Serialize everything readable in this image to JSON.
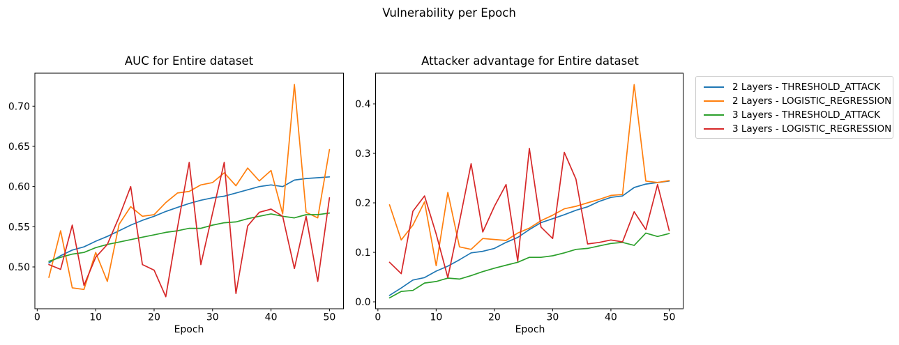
{
  "suptitle": "Vulnerability per Epoch",
  "colors": {
    "blue": "#1f77b4",
    "orange": "#ff7f0e",
    "green": "#2ca02c",
    "red": "#d62728",
    "spine": "#000000",
    "text": "#000000",
    "legend_border": "#cccccc"
  },
  "legend": {
    "position": "outside-right",
    "items": [
      {
        "label": "2 Layers - THRESHOLD_ATTACK",
        "color": "#1f77b4"
      },
      {
        "label": "2 Layers - LOGISTIC_REGRESSION",
        "color": "#ff7f0e"
      },
      {
        "label": "3 Layers - THRESHOLD_ATTACK",
        "color": "#2ca02c"
      },
      {
        "label": "3 Layers - LOGISTIC_REGRESSION",
        "color": "#d62728"
      }
    ]
  },
  "chart_data": [
    {
      "type": "line",
      "title": "AUC for Entire dataset",
      "xlabel": "Epoch",
      "ylabel": "",
      "grid": false,
      "xlim": [
        -0.4,
        52.4
      ],
      "ylim": [
        0.448,
        0.741
      ],
      "xticks": [
        0,
        10,
        20,
        30,
        40,
        50
      ],
      "xtick_labels": [
        "0",
        "10",
        "20",
        "30",
        "40",
        "50"
      ],
      "yticks": [
        0.5,
        0.55,
        0.6,
        0.65,
        0.7
      ],
      "ytick_labels": [
        "0.50",
        "0.55",
        "0.60",
        "0.65",
        "0.70"
      ],
      "x": [
        2,
        4,
        6,
        8,
        10,
        12,
        14,
        16,
        18,
        20,
        22,
        24,
        26,
        28,
        30,
        32,
        34,
        36,
        38,
        40,
        42,
        44,
        46,
        48,
        50
      ],
      "series": [
        {
          "name": "2 Layers - THRESHOLD_ATTACK",
          "color": "#1f77b4",
          "values": [
            0.505,
            0.514,
            0.521,
            0.525,
            0.532,
            0.538,
            0.545,
            0.552,
            0.558,
            0.563,
            0.569,
            0.574,
            0.579,
            0.583,
            0.586,
            0.588,
            0.592,
            0.596,
            0.6,
            0.602,
            0.6,
            0.608,
            0.61,
            0.611,
            0.612
          ]
        },
        {
          "name": "2 Layers - LOGISTIC_REGRESSION",
          "color": "#ff7f0e",
          "values": [
            0.487,
            0.545,
            0.474,
            0.472,
            0.518,
            0.482,
            0.553,
            0.575,
            0.563,
            0.565,
            0.58,
            0.592,
            0.594,
            0.602,
            0.605,
            0.617,
            0.601,
            0.623,
            0.607,
            0.62,
            0.566,
            0.727,
            0.568,
            0.561,
            0.646
          ]
        },
        {
          "name": "3 Layers - THRESHOLD_ATTACK",
          "color": "#2ca02c",
          "values": [
            0.507,
            0.512,
            0.516,
            0.518,
            0.524,
            0.528,
            0.531,
            0.534,
            0.537,
            0.54,
            0.543,
            0.545,
            0.548,
            0.548,
            0.552,
            0.555,
            0.556,
            0.56,
            0.563,
            0.566,
            0.563,
            0.561,
            0.565,
            0.565,
            0.567
          ]
        },
        {
          "name": "3 Layers - LOGISTIC_REGRESSION",
          "color": "#d62728",
          "values": [
            0.503,
            0.497,
            0.552,
            0.477,
            0.512,
            0.528,
            0.562,
            0.6,
            0.503,
            0.496,
            0.463,
            0.549,
            0.63,
            0.503,
            0.567,
            0.63,
            0.467,
            0.551,
            0.568,
            0.572,
            0.563,
            0.498,
            0.563,
            0.482,
            0.586
          ]
        }
      ]
    },
    {
      "type": "line",
      "title": "Attacker advantage for Entire dataset",
      "xlabel": "Epoch",
      "ylabel": "",
      "grid": false,
      "xlim": [
        -0.4,
        52.4
      ],
      "ylim": [
        -0.014,
        0.462
      ],
      "xticks": [
        0,
        10,
        20,
        30,
        40,
        50
      ],
      "xtick_labels": [
        "0",
        "10",
        "20",
        "30",
        "40",
        "50"
      ],
      "yticks": [
        0.0,
        0.1,
        0.2,
        0.3,
        0.4
      ],
      "ytick_labels": [
        "0.0",
        "0.1",
        "0.2",
        "0.3",
        "0.4"
      ],
      "x": [
        2,
        4,
        6,
        8,
        10,
        12,
        14,
        16,
        18,
        20,
        22,
        24,
        26,
        28,
        30,
        32,
        34,
        36,
        38,
        40,
        42,
        44,
        46,
        48,
        50
      ],
      "series": [
        {
          "name": "2 Layers - THRESHOLD_ATTACK",
          "color": "#1f77b4",
          "values": [
            0.013,
            0.028,
            0.044,
            0.049,
            0.062,
            0.072,
            0.085,
            0.099,
            0.102,
            0.108,
            0.12,
            0.13,
            0.146,
            0.16,
            0.168,
            0.176,
            0.185,
            0.192,
            0.203,
            0.211,
            0.214,
            0.231,
            0.238,
            0.241,
            0.244
          ]
        },
        {
          "name": "2 Layers - LOGISTIC_REGRESSION",
          "color": "#ff7f0e",
          "values": [
            0.196,
            0.125,
            0.155,
            0.202,
            0.073,
            0.221,
            0.111,
            0.106,
            0.128,
            0.126,
            0.124,
            0.139,
            0.149,
            0.164,
            0.175,
            0.188,
            0.193,
            0.2,
            0.207,
            0.215,
            0.217,
            0.439,
            0.244,
            0.241,
            0.245
          ]
        },
        {
          "name": "3 Layers - THRESHOLD_ATTACK",
          "color": "#2ca02c",
          "values": [
            0.008,
            0.021,
            0.023,
            0.038,
            0.041,
            0.048,
            0.046,
            0.053,
            0.061,
            0.068,
            0.074,
            0.08,
            0.09,
            0.09,
            0.093,
            0.099,
            0.106,
            0.108,
            0.113,
            0.118,
            0.12,
            0.114,
            0.139,
            0.132,
            0.138
          ]
        },
        {
          "name": "3 Layers - LOGISTIC_REGRESSION",
          "color": "#d62728",
          "values": [
            0.08,
            0.057,
            0.183,
            0.214,
            0.137,
            0.049,
            0.162,
            0.279,
            0.141,
            0.193,
            0.237,
            0.082,
            0.31,
            0.151,
            0.128,
            0.302,
            0.248,
            0.117,
            0.12,
            0.125,
            0.121,
            0.182,
            0.146,
            0.237,
            0.144
          ]
        }
      ]
    }
  ]
}
